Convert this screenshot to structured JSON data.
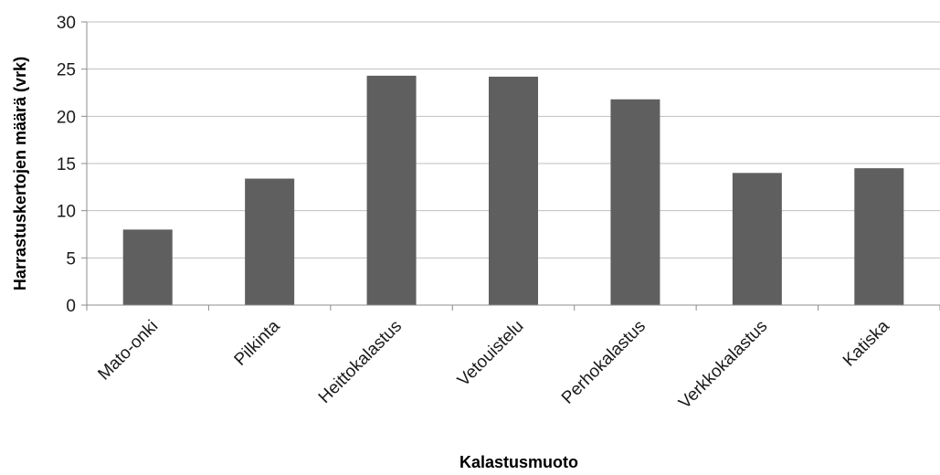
{
  "chart_data": {
    "type": "bar",
    "title": "",
    "xlabel": "Kalastusmuoto",
    "ylabel": "Harrastuskertojen  määrä (vrk)",
    "categories": [
      "Mato-onki",
      "Pilkinta",
      "Heittokalastus",
      "Vetouistelu",
      "Perhokalastus",
      "Verkkokalastus",
      "Katiska"
    ],
    "values": [
      8.0,
      13.4,
      24.3,
      24.2,
      21.8,
      14.0,
      14.5
    ],
    "ylim": [
      0,
      30
    ],
    "yticks": [
      "0",
      "5",
      "10",
      "15",
      "20",
      "25",
      "30"
    ],
    "grid": true,
    "legend": "none",
    "colors": {
      "bar": "#5f5f5f",
      "grid": "#bfbfbf",
      "axis": "#8c8c8c"
    }
  }
}
